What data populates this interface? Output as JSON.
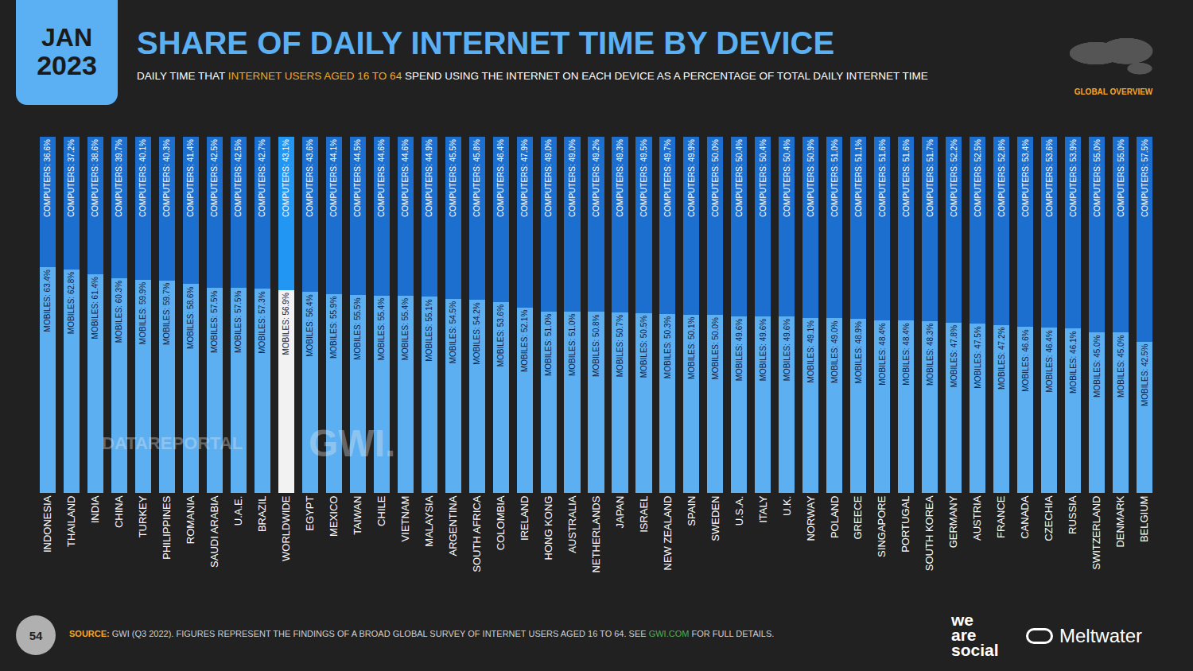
{
  "chart_data": {
    "type": "bar",
    "stacked": true,
    "date": [
      "JAN",
      "2023"
    ],
    "title": "SHARE OF DAILY INTERNET TIME BY DEVICE",
    "subtitle": [
      "DAILY TIME THAT",
      "INTERNET USERS AGED 16 TO 64",
      "SPEND USING THE INTERNET ON EACH DEVICE AS A PERCENTAGE OF TOTAL DAILY INTERNET TIME"
    ],
    "region": "GLOBAL OVERVIEW",
    "source": [
      "SOURCE:",
      "GWI (Q3 2022). FIGURES REPRESENT THE FINDINGS OF A BROAD GLOBAL SURVEY OF INTERNET USERS AGED 16 TO 64. SEE",
      "GWI.COM",
      "FOR FULL DETAILS."
    ],
    "page": "54",
    "brands": {
      "we_are_social": [
        "we",
        "are",
        "social"
      ],
      "meltwater": "Meltwater"
    },
    "watermarks": [
      "DATAREPORTAL",
      "GWI."
    ],
    "categories": [
      "INDONESIA",
      "THAILAND",
      "INDIA",
      "CHINA",
      "TURKEY",
      "PHILIPPINES",
      "ROMANIA",
      "SAUDI ARABIA",
      "U.A.E.",
      "BRAZIL",
      "WORLDWIDE",
      "EGYPT",
      "MEXICO",
      "TAIWAN",
      "CHILE",
      "VIETNAM",
      "MALAYSIA",
      "ARGENTINA",
      "SOUTH AFRICA",
      "COLOMBIA",
      "IRELAND",
      "HONG KONG",
      "AUSTRALIA",
      "NETHERLANDS",
      "JAPAN",
      "ISRAEL",
      "NEW ZEALAND",
      "SPAIN",
      "SWEDEN",
      "U.S.A.",
      "ITALY",
      "U.K.",
      "NORWAY",
      "POLAND",
      "GREECE",
      "SINGAPORE",
      "PORTUGAL",
      "SOUTH KOREA",
      "GERMANY",
      "AUSTRIA",
      "FRANCE",
      "CANADA",
      "CZECHIA",
      "RUSSIA",
      "SWITZERLAND",
      "DENMARK",
      "BELGIUM"
    ],
    "series": [
      {
        "name": "MOBILES",
        "values": [
          63.4,
          62.8,
          61.4,
          60.3,
          59.9,
          59.7,
          58.6,
          57.5,
          57.5,
          57.3,
          56.9,
          56.4,
          55.9,
          55.5,
          55.4,
          55.4,
          55.1,
          54.5,
          54.2,
          53.6,
          52.1,
          51.0,
          51.0,
          50.8,
          50.7,
          50.5,
          50.3,
          50.1,
          50.0,
          49.6,
          49.6,
          49.6,
          49.1,
          49.0,
          48.9,
          48.4,
          48.4,
          48.3,
          47.8,
          47.5,
          47.2,
          46.6,
          46.4,
          46.1,
          45.0,
          45.0,
          42.5
        ],
        "value_labels": [
          "MOBILES: 63.4%",
          "MOBILES: 62.8%",
          "MOBILES: 61.4%",
          "MOBILES: 60.3%",
          "MOBILES: 59.9%",
          "MOBILES: 59.7%",
          "MOBILES: 58.6%",
          "MOBILES: 57.5%",
          "MOBILES: 57.5%",
          "MOBILES: 57.3%",
          "MOBILES: 56.9%",
          "MOBILES: 56.4%",
          "MOBILES: 55.9%",
          "MOBILES: 55.5%",
          "MOBILES: 55.4%",
          "MOBILES: 55.4%",
          "MOBILES: 55.1%",
          "MOBILES: 54.5%",
          "MOBILES: 54.2%",
          "MOBILES: 53.6%",
          "MOBILES: 52.1%",
          "MOBILES: 51.0%",
          "MOBILES: 51.0%",
          "MOBILES: 50.8%",
          "MOBILES: 50.7%",
          "MOBILES: 50.5%",
          "MOBILES: 50.3%",
          "MOBILES: 50.1%",
          "MOBILES: 50.0%",
          "MOBILES: 49.6%",
          "MOBILES: 49.6%",
          "MOBILES: 49.6%",
          "MOBILES: 49.1%",
          "MOBILES: 49.0%",
          "MOBILES: 48.9%",
          "MOBILES: 48.4%",
          "MOBILES: 48.4%",
          "MOBILES: 48.3%",
          "MOBILES: 47.8%",
          "MOBILES: 47.5%",
          "MOBILES: 47.2%",
          "MOBILES: 46.6%",
          "MOBILES: 46.4%",
          "MOBILES: 46.1%",
          "MOBILES: 45.0%",
          "MOBILES: 45.0%",
          "MOBILES: 42.5%"
        ],
        "colors": [
          "#5cb0f2",
          "#5cb0f2",
          "#5cb0f2",
          "#5cb0f2",
          "#5cb0f2",
          "#5cb0f2",
          "#5cb0f2",
          "#5cb0f2",
          "#5cb0f2",
          "#5cb0f2",
          "#f2f2f2",
          "#5cb0f2",
          "#5cb0f2",
          "#5cb0f2",
          "#5cb0f2",
          "#5cb0f2",
          "#5cb0f2",
          "#5cb0f2",
          "#5cb0f2",
          "#5cb0f2",
          "#5cb0f2",
          "#5cb0f2",
          "#5cb0f2",
          "#5cb0f2",
          "#5cb0f2",
          "#5cb0f2",
          "#5cb0f2",
          "#5cb0f2",
          "#5cb0f2",
          "#5cb0f2",
          "#5cb0f2",
          "#5cb0f2",
          "#5cb0f2",
          "#5cb0f2",
          "#5cb0f2",
          "#5cb0f2",
          "#5cb0f2",
          "#5cb0f2",
          "#5cb0f2",
          "#5cb0f2",
          "#5cb0f2",
          "#5cb0f2",
          "#5cb0f2",
          "#5cb0f2",
          "#5cb0f2",
          "#5cb0f2",
          "#5cb0f2"
        ]
      },
      {
        "name": "COMPUTERS",
        "values": [
          36.6,
          37.2,
          38.6,
          39.7,
          40.1,
          40.3,
          41.4,
          42.5,
          42.5,
          42.7,
          43.1,
          43.6,
          44.1,
          44.5,
          44.6,
          44.6,
          44.9,
          45.5,
          45.8,
          46.4,
          47.9,
          49.0,
          49.0,
          49.2,
          49.3,
          49.5,
          49.7,
          49.9,
          50.0,
          50.4,
          50.4,
          50.4,
          50.9,
          51.0,
          51.1,
          51.6,
          51.6,
          51.7,
          52.2,
          52.5,
          52.8,
          53.4,
          53.6,
          53.9,
          55.0,
          55.0,
          57.5
        ],
        "value_labels": [
          "COMPUTERS: 36.6%",
          "COMPUTERS: 37.2%",
          "COMPUTERS: 38.6%",
          "COMPUTERS: 39.7%",
          "COMPUTERS: 40.1%",
          "COMPUTERS: 40.3%",
          "COMPUTERS: 41.4%",
          "COMPUTERS: 42.5%",
          "COMPUTERS: 42.5%",
          "COMPUTERS: 42.7%",
          "COMPUTERS: 43.1%",
          "COMPUTERS: 43.6%",
          "COMPUTERS: 44.1%",
          "COMPUTERS: 44.5%",
          "COMPUTERS: 44.6%",
          "COMPUTERS: 44.6%",
          "COMPUTERS: 44.9%",
          "COMPUTERS: 45.5%",
          "COMPUTERS: 45.8%",
          "COMPUTERS: 46.4%",
          "COMPUTERS: 47.9%",
          "COMPUTERS: 49.0%",
          "COMPUTERS: 49.0%",
          "COMPUTERS: 49.2%",
          "COMPUTERS: 49.3%",
          "COMPUTERS: 49.5%",
          "COMPUTERS: 49.7%",
          "COMPUTERS: 49.9%",
          "COMPUTERS: 50.0%",
          "COMPUTERS: 50.4%",
          "COMPUTERS: 50.4%",
          "COMPUTERS: 50.4%",
          "COMPUTERS: 50.9%",
          "COMPUTERS: 51.0%",
          "COMPUTERS: 51.1%",
          "COMPUTERS: 51.6%",
          "COMPUTERS: 51.6%",
          "COMPUTERS: 51.7%",
          "COMPUTERS: 52.2%",
          "COMPUTERS: 52.5%",
          "COMPUTERS: 52.8%",
          "COMPUTERS: 53.4%",
          "COMPUTERS: 53.6%",
          "COMPUTERS: 53.9%",
          "COMPUTERS: 55.0%",
          "COMPUTERS: 55.0%",
          "COMPUTERS: 57.5%"
        ],
        "colors": [
          "#1d6fcf",
          "#1d6fcf",
          "#1d6fcf",
          "#1d6fcf",
          "#1d6fcf",
          "#1d6fcf",
          "#1d6fcf",
          "#1d6fcf",
          "#1d6fcf",
          "#1d6fcf",
          "#2196f3",
          "#1d6fcf",
          "#1d6fcf",
          "#1d6fcf",
          "#1d6fcf",
          "#1d6fcf",
          "#1d6fcf",
          "#1d6fcf",
          "#1d6fcf",
          "#1d6fcf",
          "#1d6fcf",
          "#1d6fcf",
          "#1d6fcf",
          "#1d6fcf",
          "#1d6fcf",
          "#1d6fcf",
          "#1d6fcf",
          "#1d6fcf",
          "#1d6fcf",
          "#1d6fcf",
          "#1d6fcf",
          "#1d6fcf",
          "#1d6fcf",
          "#1d6fcf",
          "#1d6fcf",
          "#1d6fcf",
          "#1d6fcf",
          "#1d6fcf",
          "#1d6fcf",
          "#1d6fcf",
          "#1d6fcf",
          "#1d6fcf",
          "#1d6fcf",
          "#1d6fcf",
          "#1d6fcf",
          "#1d6fcf",
          "#1d6fcf"
        ]
      }
    ],
    "ylim": [
      0,
      100
    ],
    "data_labels": true,
    "tick_labels": "x",
    "grid": false,
    "legend": "none"
  }
}
